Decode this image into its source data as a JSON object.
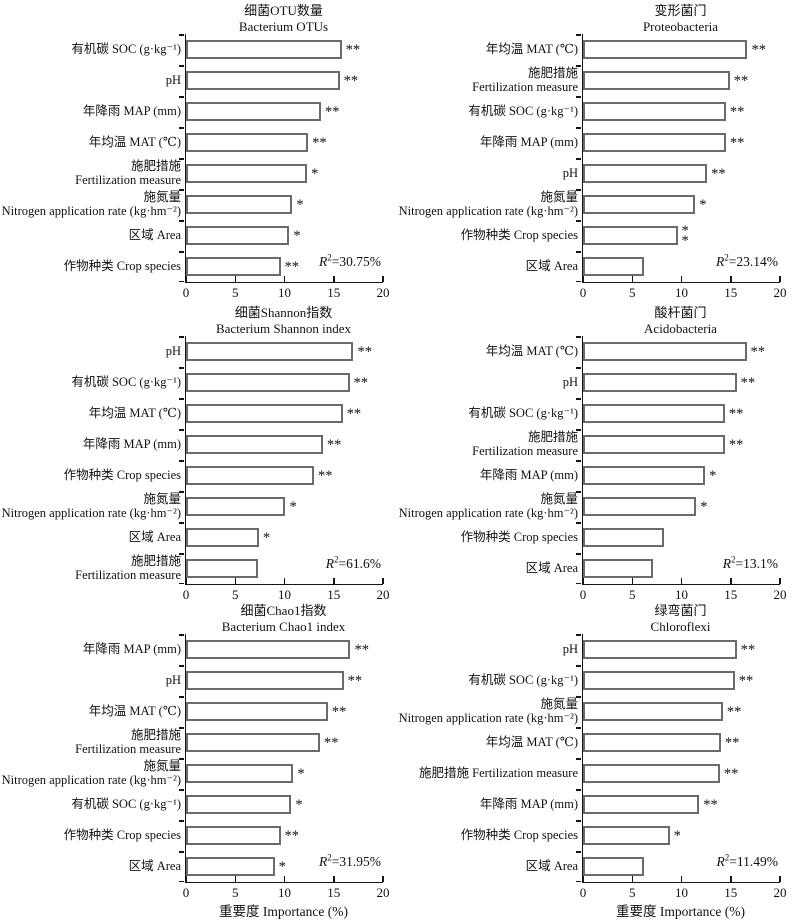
{
  "figure": {
    "xlabel": "重要度 Importance (%)",
    "x_ticks": [
      0,
      5,
      10,
      15,
      20
    ],
    "xlim": [
      0,
      20
    ],
    "bar_fill": "#ffffff",
    "bar_border": "#6b6b6b",
    "axis_color": "#151515"
  },
  "chart_data": [
    {
      "type": "bar",
      "title_zh": "细菌OTU数量",
      "title_en": "Bacterium OTUs",
      "r2": "30.75%",
      "xlim": [
        0,
        20
      ],
      "bars": [
        {
          "label": [
            "有机碳 SOC (g·kg⁻¹)"
          ],
          "value": 15.8,
          "sig": [
            "**"
          ]
        },
        {
          "label": [
            "pH"
          ],
          "value": 15.6,
          "sig": [
            "**"
          ]
        },
        {
          "label": [
            "年降雨 MAP (mm)"
          ],
          "value": 13.7,
          "sig": [
            "**"
          ]
        },
        {
          "label": [
            "年均温 MAT (℃)"
          ],
          "value": 12.4,
          "sig": [
            "**"
          ]
        },
        {
          "label": [
            "施肥措施",
            "Fertilization measure"
          ],
          "value": 12.3,
          "sig": [
            "*"
          ]
        },
        {
          "label": [
            "施氮量",
            "Nitrogen application rate (kg·hm⁻²)"
          ],
          "value": 10.8,
          "sig": [
            "*"
          ]
        },
        {
          "label": [
            "区域 Area"
          ],
          "value": 10.5,
          "sig": [
            "*"
          ]
        },
        {
          "label": [
            "作物种类 Crop species"
          ],
          "value": 9.6,
          "sig": [
            "**"
          ]
        }
      ]
    },
    {
      "type": "bar",
      "title_zh": "变形菌门",
      "title_en": "Proteobacteria",
      "r2": "23.14%",
      "xlim": [
        0,
        20
      ],
      "bars": [
        {
          "label": [
            "年均温 MAT (℃)"
          ],
          "value": 16.7,
          "sig": [
            "**"
          ]
        },
        {
          "label": [
            "施肥措施",
            "Fertilization measure"
          ],
          "value": 14.9,
          "sig": [
            "**"
          ]
        },
        {
          "label": [
            "有机碳 SOC (g·kg⁻¹)"
          ],
          "value": 14.5,
          "sig": [
            "**"
          ]
        },
        {
          "label": [
            "年降雨 MAP (mm)"
          ],
          "value": 14.5,
          "sig": [
            "**"
          ]
        },
        {
          "label": [
            "pH"
          ],
          "value": 12.6,
          "sig": [
            "**"
          ]
        },
        {
          "label": [
            "施氮量",
            "Nitrogen application rate (kg·hm⁻²)"
          ],
          "value": 11.4,
          "sig": [
            "*"
          ]
        },
        {
          "label": [
            "作物种类 Crop species"
          ],
          "value": 9.6,
          "sig": [
            "*",
            "*"
          ]
        },
        {
          "label": [
            "区域 Area"
          ],
          "value": 6.2,
          "sig": []
        }
      ]
    },
    {
      "type": "bar",
      "title_zh": "细菌Shannon指数",
      "title_en": "Bacterium Shannon index",
      "r2": "61.6%",
      "xlim": [
        0,
        20
      ],
      "bars": [
        {
          "label": [
            "pH"
          ],
          "value": 17.0,
          "sig": [
            "**"
          ]
        },
        {
          "label": [
            "有机碳 SOC (g·kg⁻¹)"
          ],
          "value": 16.6,
          "sig": [
            "**"
          ]
        },
        {
          "label": [
            "年均温 MAT (℃)"
          ],
          "value": 15.9,
          "sig": [
            "**"
          ]
        },
        {
          "label": [
            "年降雨 MAP (mm)"
          ],
          "value": 13.9,
          "sig": [
            "**"
          ]
        },
        {
          "label": [
            "作物种类 Crop species"
          ],
          "value": 13.0,
          "sig": [
            "**"
          ]
        },
        {
          "label": [
            "施氮量",
            "Nitrogen application rate (kg·hm⁻²)"
          ],
          "value": 10.1,
          "sig": [
            "*"
          ]
        },
        {
          "label": [
            "区域 Area"
          ],
          "value": 7.4,
          "sig": [
            "*"
          ]
        },
        {
          "label": [
            "施肥措施",
            "Fertilization measure"
          ],
          "value": 7.3,
          "sig": []
        }
      ]
    },
    {
      "type": "bar",
      "title_zh": "酸杆菌门",
      "title_en": "Acidobacteria",
      "r2": "13.1%",
      "xlim": [
        0,
        20
      ],
      "bars": [
        {
          "label": [
            "年均温 MAT (℃)"
          ],
          "value": 16.6,
          "sig": [
            "**"
          ]
        },
        {
          "label": [
            "pH"
          ],
          "value": 15.6,
          "sig": [
            "**"
          ]
        },
        {
          "label": [
            "有机碳 SOC (g·kg⁻¹)"
          ],
          "value": 14.4,
          "sig": [
            "**"
          ]
        },
        {
          "label": [
            "施肥措施",
            "Fertilization measure"
          ],
          "value": 14.4,
          "sig": [
            "**"
          ]
        },
        {
          "label": [
            "年降雨 MAP (mm)"
          ],
          "value": 12.4,
          "sig": [
            "*"
          ]
        },
        {
          "label": [
            "施氮量",
            "Nitrogen application rate (kg·hm⁻²)"
          ],
          "value": 11.5,
          "sig": [
            "*"
          ]
        },
        {
          "label": [
            "作物种类 Crop species"
          ],
          "value": 8.2,
          "sig": []
        },
        {
          "label": [
            "区域 Area"
          ],
          "value": 7.1,
          "sig": []
        }
      ]
    },
    {
      "type": "bar",
      "title_zh": "细菌Chao1指数",
      "title_en": "Bacterium Chao1 index",
      "r2": "31.95%",
      "xlim": [
        0,
        20
      ],
      "bars": [
        {
          "label": [
            "年降雨 MAP (mm)"
          ],
          "value": 16.7,
          "sig": [
            "**"
          ]
        },
        {
          "label": [
            "pH"
          ],
          "value": 16.0,
          "sig": [
            "**"
          ]
        },
        {
          "label": [
            "年均温 MAT (℃)"
          ],
          "value": 14.4,
          "sig": [
            "**"
          ]
        },
        {
          "label": [
            "施肥措施",
            "Fertilization measure"
          ],
          "value": 13.6,
          "sig": [
            "**"
          ]
        },
        {
          "label": [
            "施氮量",
            "Nitrogen application rate (kg·hm⁻²)"
          ],
          "value": 10.9,
          "sig": [
            "*"
          ]
        },
        {
          "label": [
            "有机碳 SOC (g·kg⁻¹)"
          ],
          "value": 10.7,
          "sig": [
            "*"
          ]
        },
        {
          "label": [
            "作物种类 Crop species"
          ],
          "value": 9.6,
          "sig": [
            "**"
          ]
        },
        {
          "label": [
            "区域 Area"
          ],
          "value": 9.0,
          "sig": [
            "*"
          ]
        }
      ]
    },
    {
      "type": "bar",
      "title_zh": "绿弯菌门",
      "title_en": "Chloroflexi",
      "r2": "11.49%",
      "xlim": [
        0,
        20
      ],
      "bars": [
        {
          "label": [
            "pH"
          ],
          "value": 15.6,
          "sig": [
            "**"
          ]
        },
        {
          "label": [
            "有机碳 SOC (g·kg⁻¹)"
          ],
          "value": 15.4,
          "sig": [
            "**"
          ]
        },
        {
          "label": [
            "施氮量",
            "Nitrogen application rate (kg·hm⁻²)"
          ],
          "value": 14.2,
          "sig": [
            "**"
          ]
        },
        {
          "label": [
            "年均温 MAT (℃)"
          ],
          "value": 14.0,
          "sig": [
            "**"
          ]
        },
        {
          "label": [
            "施肥措施 Fertilization measure"
          ],
          "value": 13.9,
          "sig": [
            "**"
          ]
        },
        {
          "label": [
            "年降雨 MAP (mm)"
          ],
          "value": 11.8,
          "sig": [
            "**"
          ]
        },
        {
          "label": [
            "作物种类 Crop species"
          ],
          "value": 8.8,
          "sig": [
            "*"
          ]
        },
        {
          "label": [
            "区域 Area"
          ],
          "value": 6.2,
          "sig": []
        }
      ]
    }
  ]
}
